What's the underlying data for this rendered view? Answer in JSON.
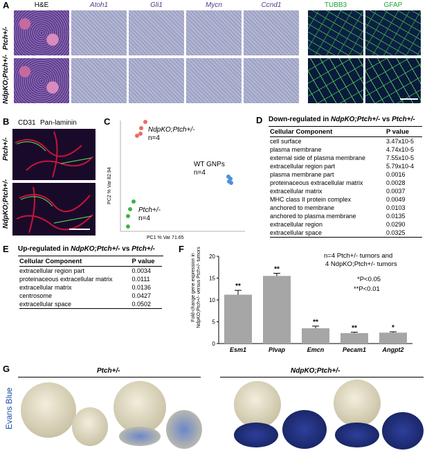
{
  "panel_a": {
    "letter": "A",
    "columns": [
      "H&E",
      "Atoh1",
      "Gli1",
      "Mycn",
      "Ccnd1",
      "TUBB3",
      "GFAP"
    ],
    "column_colors": [
      "#000000",
      "#4b3d8f",
      "#4b3d8f",
      "#4b3d8f",
      "#4b3d8f",
      "#1aa33a",
      "#1aa33a"
    ],
    "row_labels": [
      "Ptch+/-",
      "NdpKO;Ptch+/-"
    ]
  },
  "panel_b": {
    "letter": "B",
    "stain_1": "CD31",
    "stain_2": "Pan-laminin",
    "stain_1_color": "#37c44a",
    "stain_2_color": "#d41a3a",
    "row_labels": [
      "Ptch+/-",
      "NdpKO;Ptch+/-"
    ]
  },
  "panel_c": {
    "letter": "C",
    "xlabel": "PC1 % Var 71.65",
    "ylabel": "PC2 % Var 82.94",
    "groups": [
      {
        "label": "NdpKO;Ptch+/-",
        "n": "n=4",
        "color": "#ec6b63"
      },
      {
        "label": "WT GNPs",
        "n": "n=4",
        "color": "#4f8fdc"
      },
      {
        "label": "Ptch+/-",
        "n": "n=4",
        "color": "#3fb24a"
      }
    ]
  },
  "panel_d": {
    "letter": "D",
    "title_prefix": "Down-regulated in ",
    "title_geno": "NdpKO;Ptch+/-",
    "title_vs": " vs ",
    "title_ref": "Ptch+/-",
    "col1": "Cellular Component",
    "col2": "P value",
    "rows": [
      {
        "term": "cell surface",
        "p": "3.47x10-5"
      },
      {
        "term": "plasma membrane",
        "p": "4.74x10-5"
      },
      {
        "term": "external side of plasma membrane",
        "p": "7.55x10-5"
      },
      {
        "term": "extracellular region part",
        "p": "5.79x10-4"
      },
      {
        "term": "plasma membrane part",
        "p": "0.0016"
      },
      {
        "term": "proteinaceous extracellular matrix",
        "p": "0.0028"
      },
      {
        "term": "extracellular matrix",
        "p": "0.0037"
      },
      {
        "term": "MHC class II protein complex",
        "p": "0.0049"
      },
      {
        "term": "anchored to membrane",
        "p": "0.0103"
      },
      {
        "term": "anchored to plasma membrane",
        "p": "0.0135"
      },
      {
        "term": "extracellular region",
        "p": "0.0290"
      },
      {
        "term": "extracellular space",
        "p": "0.0325"
      }
    ]
  },
  "panel_e": {
    "letter": "E",
    "title_prefix": "Up-regulated in ",
    "title_geno": "NdpKO;Ptch+/-",
    "title_vs": " vs ",
    "title_ref": "Ptch+/-",
    "col1": "Cellular Component",
    "col2": "P value",
    "rows": [
      {
        "term": "extracellular region part",
        "p": "0.0034"
      },
      {
        "term": "proteinaceous extracellular matrix",
        "p": "0.0111"
      },
      {
        "term": "extracellular matrix",
        "p": "0.0136"
      },
      {
        "term": "centrosome",
        "p": "0.0427"
      },
      {
        "term": "extracellular space",
        "p": "0.0502"
      }
    ]
  },
  "panel_f": {
    "letter": "F",
    "note_line1": "n=4 Ptch+/- tumors and",
    "note_line2": "4 NdpKO;Ptch+/- tumors",
    "sig1": "*P<0.05",
    "sig2": "**P<0.01"
  },
  "chart_data": {
    "type": "bar",
    "categories": [
      "Esm1",
      "Plvap",
      "Emcn",
      "Pecam1",
      "Angpt2"
    ],
    "values": [
      11.2,
      15.5,
      3.5,
      2.4,
      2.5
    ],
    "errors": [
      1.0,
      0.6,
      0.5,
      0.2,
      0.2
    ],
    "significance": [
      "**",
      "**",
      "**",
      "**",
      "*"
    ],
    "ylabel": "Fold-change gene expression in NdpKO;Ptch+/- versus Ptch+/- tumors",
    "ylim": [
      0,
      20
    ],
    "yticks": [
      0,
      5,
      10,
      15,
      20
    ],
    "bar_color": "#a6a6a6"
  },
  "panel_g": {
    "letter": "G",
    "side_label": "Evans Blue",
    "side_label_color": "#1f4fa8",
    "group_1": "Ptch+/-",
    "group_2": "NdpKO;Ptch+/-"
  }
}
